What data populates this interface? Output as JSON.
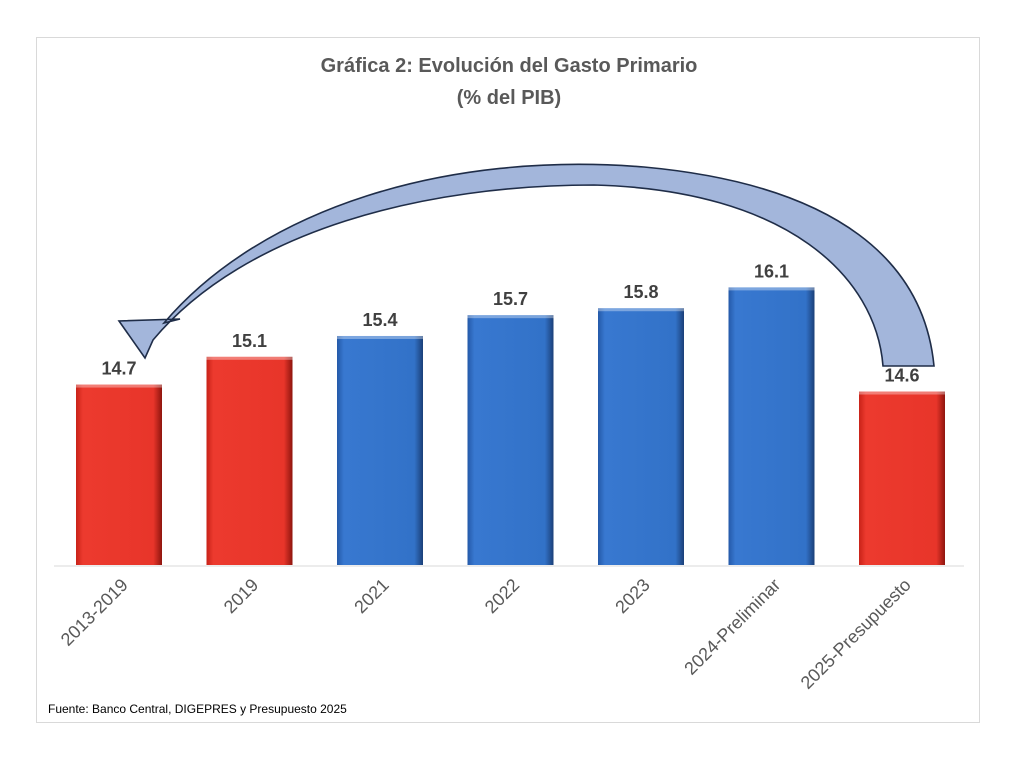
{
  "chart_data": {
    "type": "bar",
    "title": "Gráfica 2: Evolución del Gasto Primario",
    "subtitle": "(% del PIB)",
    "categories": [
      "2013-2019",
      "2019",
      "2021",
      "2022",
      "2023",
      "2024-Preliminar",
      "2025-Presupuesto"
    ],
    "values": [
      14.7,
      15.1,
      15.4,
      15.7,
      15.8,
      16.1,
      14.6
    ],
    "value_labels": [
      "14.7",
      "15.1",
      "15.4",
      "15.7",
      "15.8",
      "16.1",
      "14.6"
    ],
    "bar_colors": [
      "#e8352a",
      "#e8352a",
      "#3272c8",
      "#3272c8",
      "#3272c8",
      "#3272c8",
      "#e8352a"
    ],
    "axis_base": 12.1,
    "ylim": [
      12.1,
      16.5
    ],
    "grid": false,
    "legend": "none",
    "annotation": "curved arrow from 2025-Presupuesto back to 2013-2019",
    "source": "Fuente: Banco Central, DIGEPRES y Presupuesto 2025"
  },
  "colors": {
    "red": "#e8352a",
    "blue": "#3272c8",
    "arrow_fill": "#8fa6d3",
    "arrow_stroke": "#1f2d48"
  }
}
